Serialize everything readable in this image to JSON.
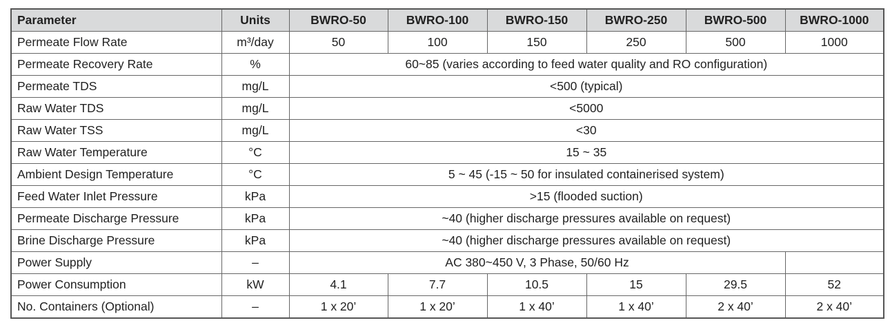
{
  "table": {
    "header": [
      "Parameter",
      "Units",
      "BWRO-50",
      "BWRO-100",
      "BWRO-150",
      "BWRO-250",
      "BWRO-500",
      "BWRO-1000"
    ],
    "rows": [
      [
        "Permeate Flow Rate",
        "m³/day",
        "50",
        "100",
        "150",
        "250",
        "500",
        "1000"
      ],
      [
        "Permeate Recovery Rate",
        "%",
        "60~85 (varies according to feed water quality and RO configuration)"
      ],
      [
        "Permeate TDS",
        "mg/L",
        "<500 (typical)"
      ],
      [
        "Raw Water TDS",
        "mg/L",
        "<5000"
      ],
      [
        "Raw Water TSS",
        "mg/L",
        "<30"
      ],
      [
        "Raw Water Temperature",
        "°C",
        "15 ~ 35"
      ],
      [
        "Ambient Design Temperature",
        "°C",
        "5 ~ 45 (-15 ~ 50 for insulated containerised system)"
      ],
      [
        "Feed Water Inlet Pressure",
        "kPa",
        ">15 (flooded suction)"
      ],
      [
        "Permeate Discharge Pressure",
        "kPa",
        "~40 (higher discharge pressures available on request)"
      ],
      [
        "Brine Discharge Pressure",
        "kPa",
        "~40 (higher discharge pressures available on request)"
      ],
      [
        "Power Supply",
        "–",
        "AC 380~450 V, 3 Phase, 50/60 Hz"
      ],
      [
        "Power Consumption",
        "kW",
        "4.1",
        "7.7",
        "10.5",
        "15",
        "29.5",
        "52"
      ],
      [
        "No. Containers (Optional)",
        "–",
        "1 x 20’",
        "1 x 20’",
        "1 x 40’",
        "1 x 40’",
        "2 x 40’",
        "2 x 40’"
      ]
    ]
  }
}
